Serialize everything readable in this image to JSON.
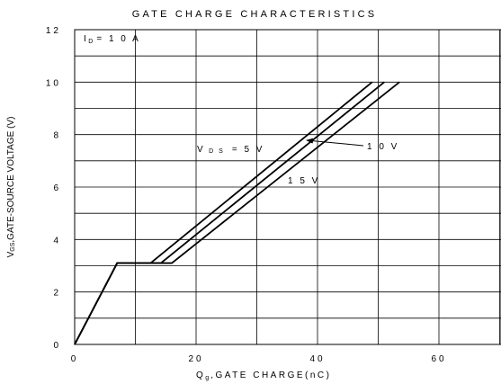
{
  "chart_data": {
    "type": "line",
    "title": "GATE CHARGE CHARACTERISTICS",
    "xlabel": {
      "q": "Q",
      "g": "g",
      "rest": ",GATE CHARGE(nC)"
    },
    "ylabel": {
      "v": "V",
      "gs": "GS",
      "rest": ",GATE-SOURCE VOLTAGE (V)"
    },
    "xlim": [
      0,
      60
    ],
    "ylim": [
      0,
      12
    ],
    "x_ticks": [
      0,
      20,
      40,
      60
    ],
    "x_tick_labels": [
      "0",
      "20",
      "40",
      "60"
    ],
    "y_ticks": [
      0,
      2,
      4,
      6,
      8,
      10,
      12
    ],
    "y_tick_labels": [
      "0",
      "2",
      "4",
      "6",
      "8",
      "10",
      "12"
    ],
    "grid": true,
    "condition": {
      "i": "I",
      "d": "D",
      "rest": "= 1 0 A"
    },
    "series": [
      {
        "name": "5 V",
        "x": [
          0,
          7,
          12.5,
          49
        ],
        "y": [
          0,
          3.1,
          3.1,
          10
        ]
      },
      {
        "name": "10 V",
        "x": [
          0,
          7,
          14.2,
          51
        ],
        "y": [
          0,
          3.1,
          3.1,
          10
        ]
      },
      {
        "name": "15 V",
        "x": [
          0,
          7,
          16,
          53.5
        ],
        "y": [
          0,
          3.1,
          3.1,
          10
        ]
      }
    ],
    "annotations": {
      "vds_prefix": "V",
      "vds_sub": "D S",
      "vds_suffix": "= 5 V",
      "label_10v": "1 0 V",
      "label_15v": "1 5 V"
    }
  }
}
